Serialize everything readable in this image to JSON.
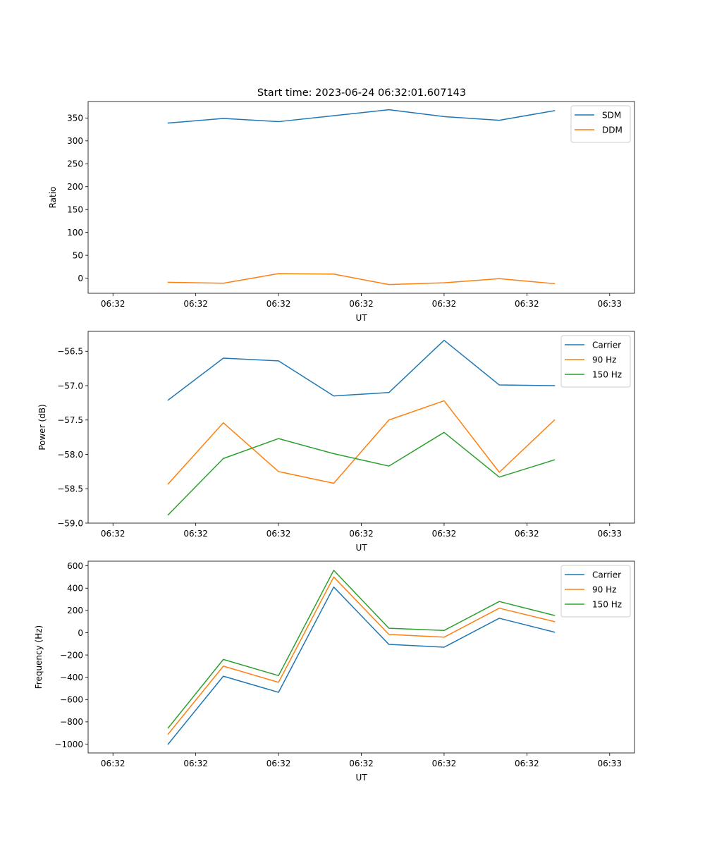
{
  "figure": {
    "title": "Start time: 2023-06-24 06:32:01.607143"
  },
  "chart_data": [
    {
      "type": "line",
      "title": "Start time: 2023-06-24 06:32:01.607143",
      "xlabel": "UT",
      "ylabel": "Ratio",
      "x": [
        1,
        2,
        3,
        4,
        5,
        6,
        7,
        8
      ],
      "xlim": [
        -0.45,
        9.45
      ],
      "xticks": [
        0,
        1.5,
        3,
        4.5,
        6,
        7.5,
        9
      ],
      "xtick_labels": [
        "06:32",
        "06:32",
        "06:32",
        "06:32",
        "06:32",
        "06:32",
        "06:33"
      ],
      "ylim": [
        -33,
        386
      ],
      "yticks": [
        0,
        50,
        100,
        150,
        200,
        250,
        300,
        350
      ],
      "ytick_labels": [
        "0",
        "50",
        "100",
        "150",
        "200",
        "250",
        "300",
        "350"
      ],
      "legend": "top-right",
      "grid": false,
      "series": [
        {
          "name": "SDM",
          "color": "#1f77b4",
          "values": [
            339,
            349,
            342,
            355,
            368,
            353,
            345,
            366
          ]
        },
        {
          "name": "DDM",
          "color": "#ff7f0e",
          "values": [
            -9,
            -11,
            10,
            9,
            -14,
            -10,
            -1,
            -12
          ]
        }
      ]
    },
    {
      "type": "line",
      "title": "",
      "xlabel": "UT",
      "ylabel": "Power (dB)",
      "x": [
        1,
        2,
        3,
        4,
        5,
        6,
        7,
        8
      ],
      "xlim": [
        -0.45,
        9.45
      ],
      "xticks": [
        0,
        1.5,
        3,
        4.5,
        6,
        7.5,
        9
      ],
      "xtick_labels": [
        "06:32",
        "06:32",
        "06:32",
        "06:32",
        "06:32",
        "06:32",
        "06:33"
      ],
      "ylim": [
        -59.0,
        -56.21
      ],
      "yticks": [
        -59.0,
        -58.5,
        -58.0,
        -57.5,
        -57.0,
        -56.5
      ],
      "ytick_labels": [
        "−59.0",
        "−58.5",
        "−58.0",
        "−57.5",
        "−57.0",
        "−56.5"
      ],
      "legend": "top-right",
      "grid": false,
      "series": [
        {
          "name": "Carrier",
          "color": "#1f77b4",
          "values": [
            -57.21,
            -56.6,
            -56.64,
            -57.15,
            -57.1,
            -56.34,
            -56.99,
            -57.0
          ]
        },
        {
          "name": "90 Hz",
          "color": "#ff7f0e",
          "values": [
            -58.43,
            -57.54,
            -58.25,
            -58.42,
            -57.5,
            -57.22,
            -58.26,
            -57.5
          ]
        },
        {
          "name": "150 Hz",
          "color": "#2ca02c",
          "values": [
            -58.88,
            -58.06,
            -57.77,
            -57.99,
            -58.17,
            -57.68,
            -58.33,
            -58.08
          ]
        }
      ]
    },
    {
      "type": "line",
      "title": "",
      "xlabel": "UT",
      "ylabel": "Frequency (Hz)",
      "x": [
        1,
        2,
        3,
        4,
        5,
        6,
        7,
        8
      ],
      "xlim": [
        -0.45,
        9.45
      ],
      "xticks": [
        0,
        1.5,
        3,
        4.5,
        6,
        7.5,
        9
      ],
      "xtick_labels": [
        "06:32",
        "06:32",
        "06:32",
        "06:32",
        "06:32",
        "06:32",
        "06:33"
      ],
      "ylim": [
        -1079,
        642
      ],
      "yticks": [
        -1000,
        -800,
        -600,
        -400,
        -200,
        0,
        200,
        400,
        600
      ],
      "ytick_labels": [
        "−1000",
        "−800",
        "−600",
        "−400",
        "−200",
        "0",
        "200",
        "400",
        "600"
      ],
      "legend": "top-right",
      "grid": false,
      "series": [
        {
          "name": "Carrier",
          "color": "#1f77b4",
          "values": [
            -1000,
            -390,
            -535,
            410,
            -105,
            -130,
            130,
            5
          ]
        },
        {
          "name": "90 Hz",
          "color": "#ff7f0e",
          "values": [
            -910,
            -300,
            -445,
            500,
            -15,
            -40,
            220,
            100
          ]
        },
        {
          "name": "150 Hz",
          "color": "#2ca02c",
          "values": [
            -855,
            -240,
            -385,
            560,
            40,
            20,
            280,
            155
          ]
        }
      ]
    }
  ]
}
